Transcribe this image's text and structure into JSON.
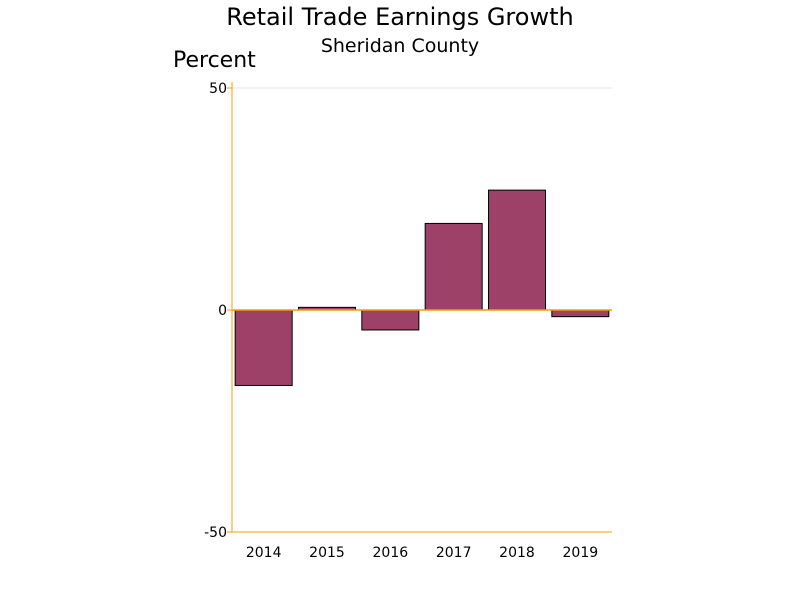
{
  "chart_data": {
    "type": "bar",
    "title": "Retail Trade Earnings Growth",
    "subtitle": "Sheridan County",
    "ylabel": "Percent",
    "xlabel": "",
    "categories": [
      "2014",
      "2015",
      "2016",
      "2017",
      "2018",
      "2019"
    ],
    "values": [
      -17,
      0.6,
      -4.5,
      19.5,
      27,
      -1.5
    ],
    "ylim": [
      -50,
      50
    ],
    "yticks": [
      "-50",
      "0",
      "50"
    ],
    "grid": false,
    "legend": "none"
  },
  "colors": {
    "bar_fill": "#9e4168",
    "bar_stroke": "#000000",
    "axis": "#f0a000",
    "top_gridline": "#e4e4e4"
  }
}
